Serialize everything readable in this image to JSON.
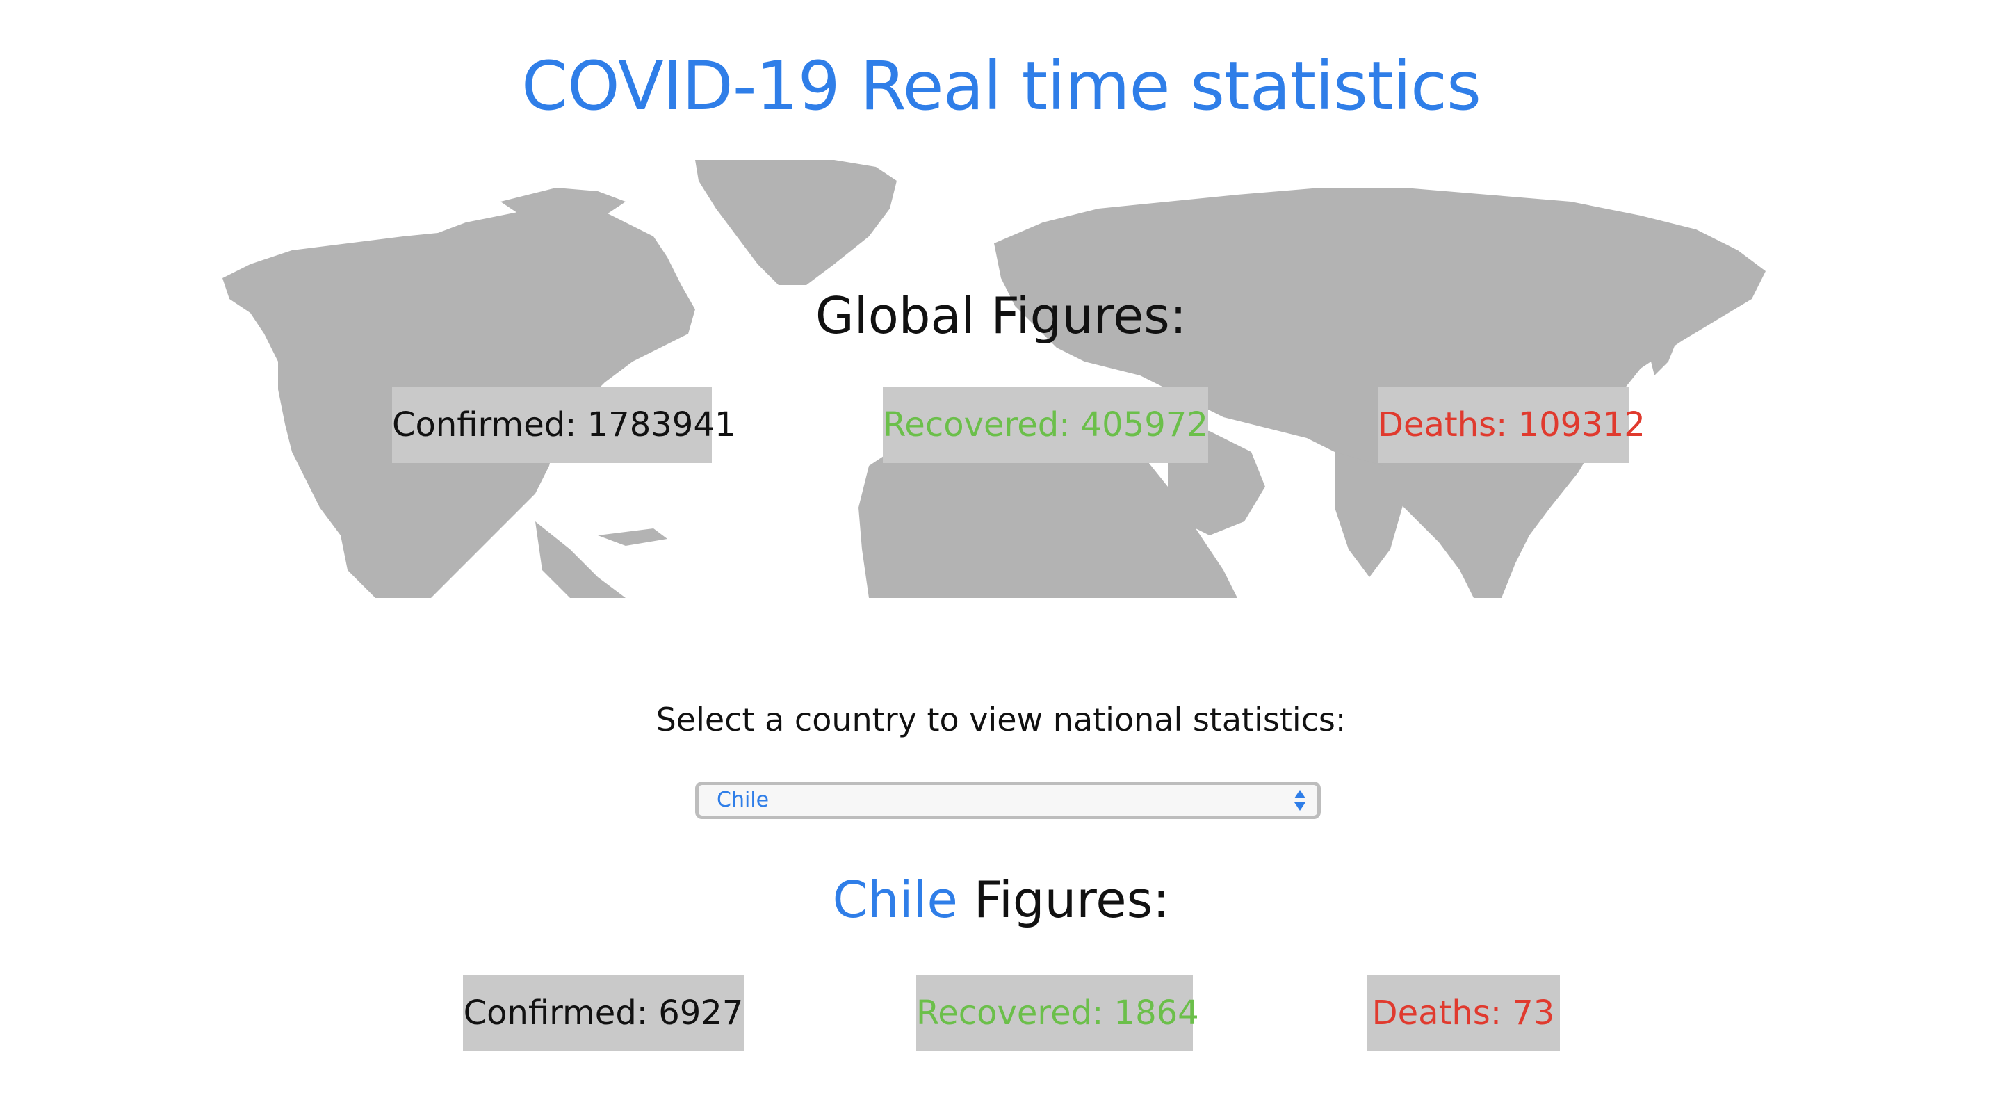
{
  "title": "COVID-19 Real time statistics",
  "global": {
    "heading": "Global Figures:",
    "confirmed": "Confirmed: 1783941",
    "recovered": "Recovered: 405972",
    "deaths": "Deaths: 109312"
  },
  "selector": {
    "label": "Select a country to view national statistics:",
    "selected_value": "Chile"
  },
  "country": {
    "name": "Chile",
    "heading_suffix": " Figures:",
    "confirmed": "Confirmed: 6927",
    "recovered": "Recovered: 1864",
    "deaths": "Deaths: 73"
  },
  "colors": {
    "accent_blue": "#2f7ee8",
    "recovered_green": "#6bbf4a",
    "deaths_red": "#e03a2e",
    "box_gray": "#c9c9c9",
    "map_gray": "#b3b3b3"
  }
}
